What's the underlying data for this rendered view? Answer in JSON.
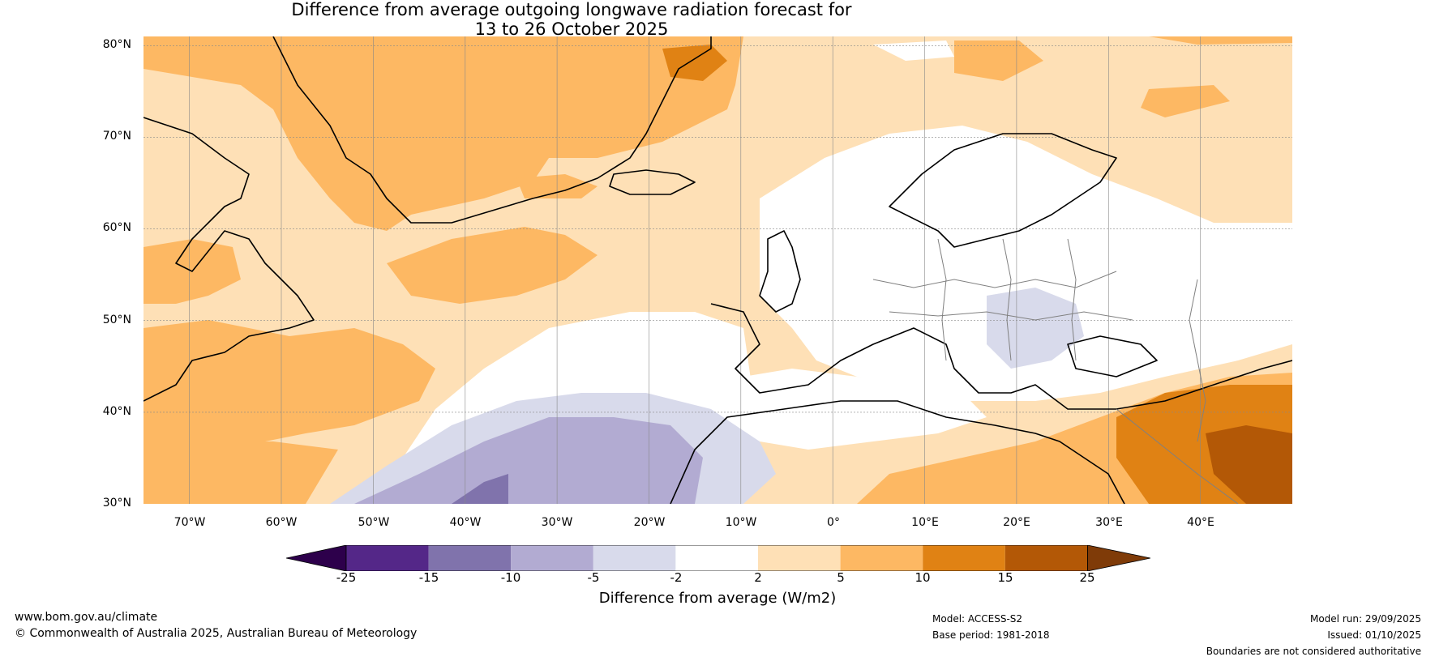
{
  "title": {
    "line1": "Difference from average outgoing longwave radiation forecast for",
    "line2": "13 to 26 October 2025"
  },
  "map": {
    "lat_labels": [
      "80°N",
      "70°N",
      "60°N",
      "50°N",
      "40°N",
      "30°N"
    ],
    "lon_labels": [
      "70°W",
      "60°W",
      "50°W",
      "40°W",
      "30°W",
      "20°W",
      "10°W",
      "0°",
      "10°E",
      "20°E",
      "30°E",
      "40°E"
    ],
    "extent": {
      "lon_min": -75,
      "lon_max": 50,
      "lat_min": 30,
      "lat_max": 81
    }
  },
  "legend": {
    "label": "Difference from average (W/m2)",
    "ticks": [
      "-25",
      "-15",
      "-10",
      "-5",
      "-2",
      "2",
      "5",
      "10",
      "15",
      "25"
    ],
    "colors": [
      "#2d004b",
      "#542788",
      "#8073ac",
      "#b2abd2",
      "#d8daeb",
      "#ffffff",
      "#fee0b6",
      "#fdb863",
      "#e08214",
      "#b35806",
      "#7f3b08"
    ]
  },
  "footer": {
    "website": "www.bom.gov.au/climate",
    "copyright": "© Commonwealth of Australia 2025, Australian Bureau of Meteorology",
    "model": "Model: ACCESS-S2",
    "base_period": "Base period: 1981-2018",
    "model_run": "Model run: 29/09/2025",
    "issued": "Issued: 01/10/2025",
    "disclaimer": "Boundaries are not considered authoritative"
  }
}
